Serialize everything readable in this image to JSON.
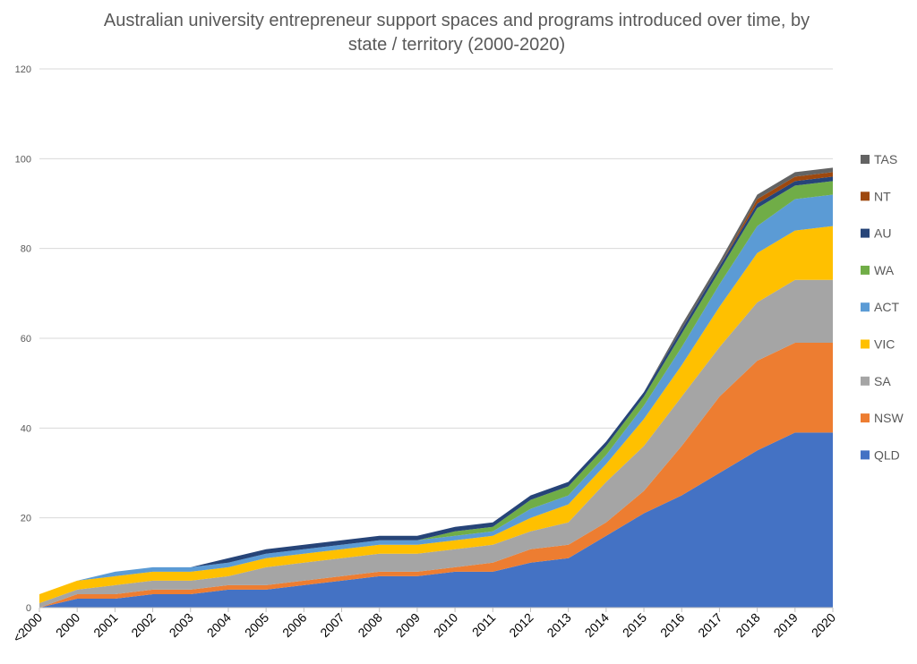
{
  "chart_data": {
    "type": "area",
    "stacked": true,
    "title": "Australian university entrepreneur support spaces and programs introduced over time, by state / territory (2000-2020)",
    "xlabel": "",
    "ylabel": "",
    "categories": [
      "<2000",
      "2000",
      "2001",
      "2002",
      "2003",
      "2004",
      "2005",
      "2006",
      "2007",
      "2008",
      "2009",
      "2010",
      "2011",
      "2012",
      "2013",
      "2014",
      "2015",
      "2016",
      "2017",
      "2018",
      "2019",
      "2020"
    ],
    "ylim": [
      0,
      120
    ],
    "yticks": [
      0,
      20,
      40,
      60,
      80,
      100,
      120
    ],
    "grid": true,
    "legend_position": "right",
    "series": [
      {
        "name": "QLD",
        "color": "#4472C4",
        "values": [
          0,
          2,
          2,
          3,
          3,
          4,
          4,
          5,
          6,
          7,
          7,
          8,
          8,
          10,
          11,
          16,
          21,
          25,
          30,
          35,
          39,
          39
        ]
      },
      {
        "name": "NSW",
        "color": "#ED7D31",
        "values": [
          0,
          1,
          1,
          1,
          1,
          1,
          1,
          1,
          1,
          1,
          1,
          1,
          2,
          3,
          3,
          3,
          5,
          11,
          17,
          20,
          20,
          20
        ]
      },
      {
        "name": "SA",
        "color": "#A5A5A5",
        "values": [
          1,
          1,
          2,
          2,
          2,
          2,
          4,
          4,
          4,
          4,
          4,
          4,
          4,
          4,
          5,
          9,
          10,
          11,
          11,
          13,
          14,
          14
        ]
      },
      {
        "name": "VIC",
        "color": "#FFC000",
        "values": [
          2,
          2,
          2,
          2,
          2,
          2,
          2,
          2,
          2,
          2,
          2,
          2,
          2,
          3,
          4,
          4,
          6,
          7,
          9,
          11,
          11,
          12
        ]
      },
      {
        "name": "ACT",
        "color": "#5B9BD5",
        "values": [
          0,
          0,
          1,
          1,
          1,
          1,
          1,
          1,
          1,
          1,
          1,
          1,
          1,
          2,
          2,
          2,
          3,
          4,
          5,
          6,
          7,
          7
        ]
      },
      {
        "name": "WA",
        "color": "#70AD47",
        "values": [
          0,
          0,
          0,
          0,
          0,
          0,
          0,
          0,
          0,
          0,
          0,
          1,
          1,
          2,
          2,
          2,
          2,
          3,
          3,
          4,
          3,
          3
        ]
      },
      {
        "name": "AU",
        "color": "#264478",
        "values": [
          0,
          0,
          0,
          0,
          0,
          1,
          1,
          1,
          1,
          1,
          1,
          1,
          1,
          1,
          1,
          1,
          1,
          1,
          1,
          1,
          1,
          1
        ]
      },
      {
        "name": "NT",
        "color": "#9E480E",
        "values": [
          0,
          0,
          0,
          0,
          0,
          0,
          0,
          0,
          0,
          0,
          0,
          0,
          0,
          0,
          0,
          0,
          0,
          0,
          0,
          1,
          1,
          1
        ]
      },
      {
        "name": "TAS",
        "color": "#636363",
        "values": [
          0,
          0,
          0,
          0,
          0,
          0,
          0,
          0,
          0,
          0,
          0,
          0,
          0,
          0,
          0,
          0,
          0,
          1,
          1,
          1,
          1,
          1
        ]
      }
    ]
  }
}
